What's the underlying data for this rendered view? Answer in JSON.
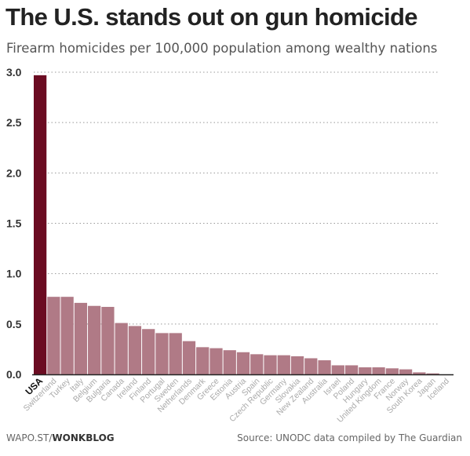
{
  "header": {
    "title": "The U.S. stands out on gun homicide",
    "subtitle": "Firearm homicides per 100,000 population among wealthy nations"
  },
  "footer": {
    "credit_prefix": "WAPO.ST/",
    "credit_brand": "WONKBLOG",
    "source": "Source: UNODC data compiled by The Guardian"
  },
  "colors": {
    "highlight": "#6b0c22",
    "bar": "#b07a86",
    "grid": "#999999",
    "text": "#333333"
  },
  "chart_data": {
    "type": "bar",
    "title": "The U.S. stands out on gun homicide",
    "subtitle": "Firearm homicides per 100,000 population among wealthy nations",
    "xlabel": "",
    "ylabel": "",
    "ylim": [
      0,
      3.0
    ],
    "yticks": [
      "0.0",
      "0.5",
      "1.0",
      "1.5",
      "2.0",
      "2.5",
      "3.0"
    ],
    "grid": true,
    "highlight_category": "USA",
    "categories": [
      "USA",
      "Switzerland",
      "Turkey",
      "Italy",
      "Belgium",
      "Bulgaria",
      "Canada",
      "Ireland",
      "Finland",
      "Portugal",
      "Sweden",
      "Netherlands",
      "Denmark",
      "Greece",
      "Estonia",
      "Austria",
      "Spain",
      "Czech Republic",
      "Germany",
      "Slovakia",
      "New Zealand",
      "Australia",
      "Israel",
      "Poland",
      "Hungary",
      "United Kingdom",
      "France",
      "Norway",
      "South Korea",
      "Japan",
      "Iceland"
    ],
    "values": [
      2.97,
      0.77,
      0.77,
      0.71,
      0.68,
      0.67,
      0.51,
      0.48,
      0.45,
      0.41,
      0.41,
      0.33,
      0.27,
      0.26,
      0.24,
      0.22,
      0.2,
      0.19,
      0.19,
      0.18,
      0.16,
      0.14,
      0.09,
      0.09,
      0.07,
      0.07,
      0.06,
      0.05,
      0.02,
      0.01,
      0.0
    ]
  }
}
